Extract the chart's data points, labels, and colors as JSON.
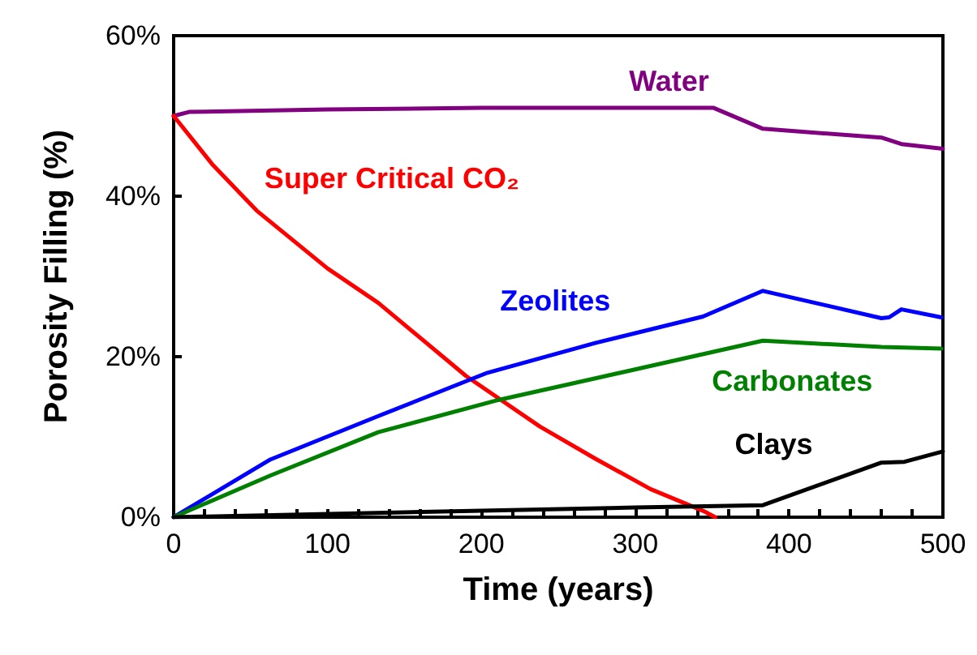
{
  "chart_data": {
    "type": "line",
    "xlabel": "Time (years)",
    "ylabel": "Porosity Filling (%)",
    "xlim": [
      0,
      500
    ],
    "ylim": [
      0,
      60
    ],
    "xticks": [
      0,
      {
        "value": 20,
        "label": null
      },
      {
        "value": 40,
        "label": null
      },
      {
        "value": 60,
        "label": null
      },
      {
        "value": 80,
        "label": null
      },
      100,
      {
        "value": 120,
        "label": null
      },
      {
        "value": 140,
        "label": null
      },
      {
        "value": 160,
        "label": null
      },
      {
        "value": 180,
        "label": null
      },
      200,
      {
        "value": 220,
        "label": null
      },
      {
        "value": 240,
        "label": null
      },
      {
        "value": 260,
        "label": null
      },
      {
        "value": 280,
        "label": null
      },
      300,
      {
        "value": 320,
        "label": null
      },
      {
        "value": 340,
        "label": null
      },
      {
        "value": 360,
        "label": null
      },
      {
        "value": 380,
        "label": null
      },
      400,
      {
        "value": 420,
        "label": null
      },
      {
        "value": 440,
        "label": null
      },
      {
        "value": 460,
        "label": null
      },
      {
        "value": 480,
        "label": null
      },
      500
    ],
    "yticks": [
      {
        "value": 0,
        "label": "0%"
      },
      {
        "value": 20,
        "label": "20%"
      },
      {
        "value": 40,
        "label": "40%"
      },
      {
        "value": 60,
        "label": "60%"
      }
    ],
    "grid": false,
    "legend": false,
    "marker": "none",
    "line_style": "solid",
    "series": [
      {
        "name": "Water",
        "color": "#800080",
        "x": [
          0,
          10,
          100,
          200,
          300,
          351,
          383,
          460,
          473,
          500
        ],
        "values": [
          50,
          50.5,
          50.8,
          51,
          51,
          51,
          48.4,
          47.3,
          46.5,
          45.9
        ]
      },
      {
        "name": "Super Critical CO₂",
        "color": "#ff0000",
        "x": [
          0,
          25,
          54,
          100,
          133,
          190,
          238,
          274,
          310,
          344,
          352
        ],
        "values": [
          50,
          44,
          38.2,
          31,
          26.7,
          17.6,
          11.3,
          7.3,
          3.5,
          0.8,
          0
        ]
      },
      {
        "name": "Zeolites",
        "color": "#0000ff",
        "x": [
          0,
          63,
          133,
          204,
          274,
          344,
          383,
          460,
          465,
          473,
          499
        ],
        "values": [
          0,
          7.2,
          12.6,
          18,
          21.7,
          25,
          28.2,
          24.8,
          24.9,
          25.9,
          24.9
        ]
      },
      {
        "name": "Carbonates",
        "color": "#008000",
        "x": [
          0,
          63,
          133,
          211,
          274,
          383,
          460,
          499
        ],
        "values": [
          0,
          5.2,
          10.6,
          14.6,
          17.3,
          22,
          21.2,
          21
        ]
      },
      {
        "name": "Clays",
        "color": "#000000",
        "x": [
          0,
          200,
          300,
          383,
          460,
          475,
          500
        ],
        "values": [
          0,
          0.8,
          1.2,
          1.5,
          6.8,
          6.9,
          8.2
        ]
      }
    ]
  }
}
